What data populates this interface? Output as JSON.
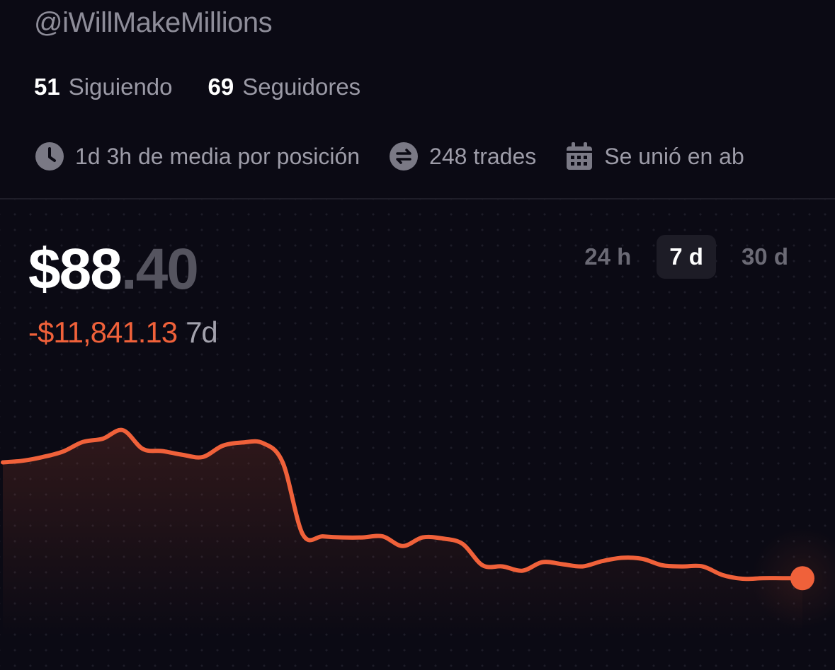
{
  "profile": {
    "handle": "@iWillMakeMillions",
    "following_count": "51",
    "following_label": "Siguiendo",
    "followers_count": "69",
    "followers_label": "Seguidores"
  },
  "meta": [
    {
      "icon": "clock-icon",
      "text": "1d 3h de media por posición"
    },
    {
      "icon": "swap-icon",
      "text": "248 trades"
    },
    {
      "icon": "calendar-icon",
      "text": "Se unió en ab"
    }
  ],
  "balance": {
    "whole": "$88",
    "cents": ".40"
  },
  "pnl": {
    "value": "-$11,841.13",
    "period": "7d"
  },
  "range_tabs": [
    {
      "label": "24 h",
      "active": false
    },
    {
      "label": "7 d",
      "active": true
    },
    {
      "label": "30 d",
      "active": false
    }
  ],
  "colors": {
    "background": "#0b0a14",
    "accent": "#f0613a",
    "muted_text": "#9b9aa6"
  },
  "chart_data": {
    "type": "line",
    "series": [
      {
        "values": [
          1000,
          1150,
          1500,
          2000,
          2900,
          3200,
          4000,
          2250,
          2050,
          1700,
          1500,
          2550,
          2850,
          2800,
          1000,
          -5700,
          -5900,
          -6000,
          -6000,
          -5900,
          -6800,
          -6000,
          -6100,
          -6600,
          -8600,
          -8700,
          -9100,
          -8300,
          -8500,
          -8700,
          -8200,
          -7900,
          -8000,
          -8600,
          -8700,
          -8700,
          -9500,
          -9850,
          -9800,
          -9800,
          -9800
        ]
      }
    ],
    "unit": "USD",
    "grid": false,
    "last_point_marker": true
  }
}
